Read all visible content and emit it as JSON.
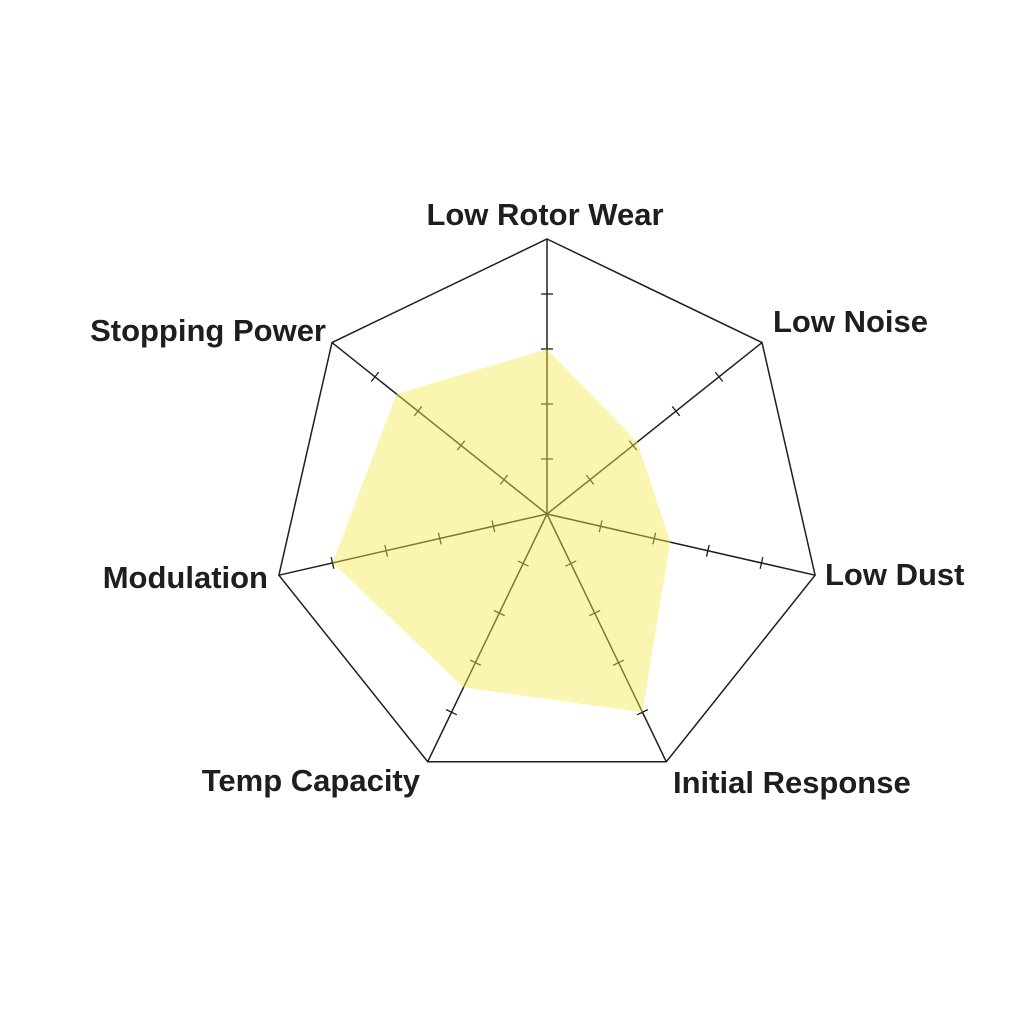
{
  "chart_data": {
    "type": "radar",
    "title": "",
    "axes": [
      "Low Rotor Wear",
      "Low Noise",
      "Low Dust",
      "Initial Response",
      "Temp Capacity",
      "Modulation",
      "Stopping Power"
    ],
    "range": [
      0,
      5
    ],
    "ticks": [
      1,
      2,
      3,
      4,
      5
    ],
    "grid": "outer polygon with spokes and tick marks",
    "series": [
      {
        "values": [
          3,
          2.1,
          2.3,
          4,
          3.5,
          4,
          3.5
        ],
        "color": "#f5ea55"
      }
    ],
    "colors": {
      "lines": "#1e1e1e",
      "fill": "#f5ea55",
      "text": "#1e1e1e"
    }
  }
}
